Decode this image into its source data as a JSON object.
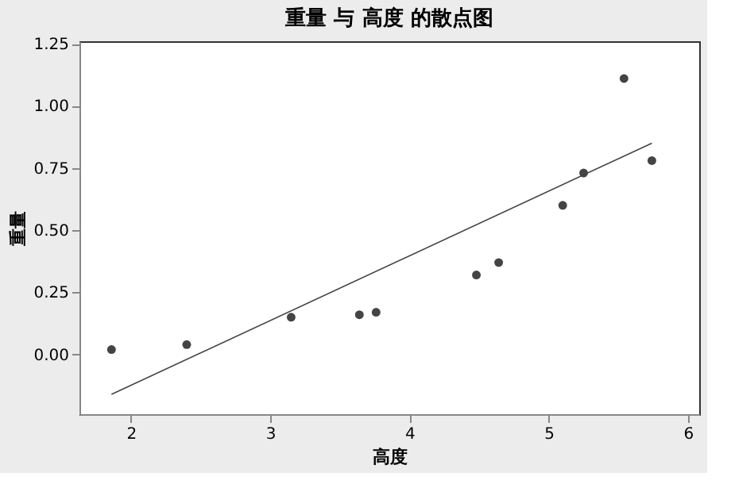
{
  "chart_data": {
    "type": "scatter",
    "title": "重量 与 高度 的散点图",
    "xlabel": "高度",
    "ylabel": "重量",
    "series": [
      {
        "color": "#444444",
        "x": [
          1.86,
          2.4,
          3.15,
          3.64,
          3.76,
          4.48,
          4.64,
          5.1,
          5.25,
          5.54,
          5.74
        ],
        "values": [
          0.02,
          0.04,
          0.15,
          0.16,
          0.17,
          0.32,
          0.37,
          0.6,
          0.73,
          1.11,
          0.78
        ]
      },
      {
        "type": "line",
        "marker": "none",
        "color": "#444444",
        "x": [
          1.86,
          5.74
        ],
        "values": [
          -0.16,
          0.85
        ]
      }
    ],
    "xlim": [
      1.63,
      6.08
    ],
    "xticks": [
      2,
      3,
      4,
      5,
      6
    ],
    "ylim": [
      -0.24,
      1.26
    ],
    "yticks": [
      {
        "value": 0,
        "label": "0.00"
      },
      {
        "value": 0.25,
        "label": "0.25"
      },
      {
        "value": 0.5,
        "label": "0.50"
      },
      {
        "value": 0.75,
        "label": "0.75"
      },
      {
        "value": 1,
        "label": "1.00"
      },
      {
        "value": 1.25,
        "label": "1.25"
      }
    ],
    "marker": "circle",
    "grid": false
  }
}
